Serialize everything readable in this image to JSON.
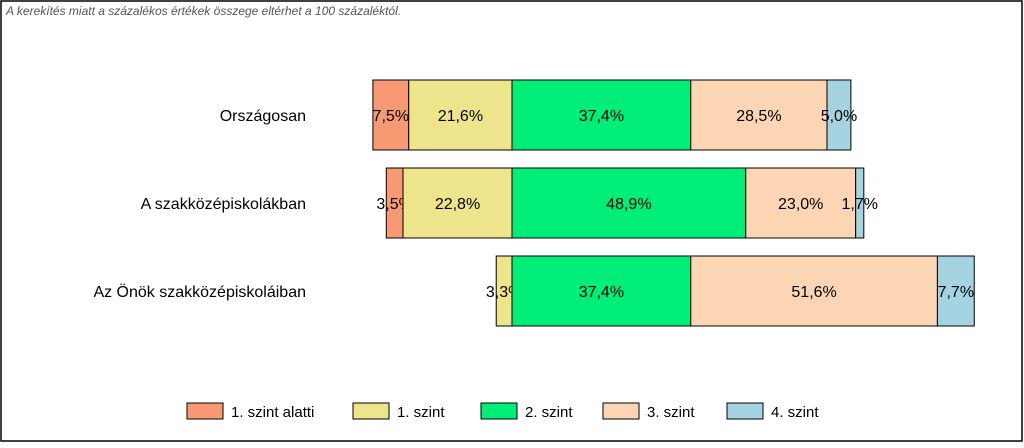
{
  "note": "A kerekítés miatt a  százalékos értékek összege eltérhet a 100 százaléktól.",
  "chart_data": {
    "type": "bar",
    "orientation": "horizontal",
    "stacked": true,
    "diverging": true,
    "categories": [
      "Országosan",
      "A szakközépiskolákban",
      "Az Önök szakközépiskoláiban"
    ],
    "series": [
      {
        "name": "1. szint alatti",
        "color": "#f79a73",
        "values": [
          7.5,
          3.5,
          0.0
        ],
        "labels": [
          "7,5%",
          "3,5%",
          ""
        ]
      },
      {
        "name": "1. szint",
        "color": "#ede48c",
        "values": [
          21.6,
          22.8,
          3.3
        ],
        "labels": [
          "21,6%",
          "22,8%",
          "3,3%"
        ]
      },
      {
        "name": "2. szint",
        "color": "#00ee77",
        "values": [
          37.4,
          48.9,
          37.4
        ],
        "labels": [
          "37,4%",
          "48,9%",
          "37,4%"
        ]
      },
      {
        "name": "3. szint",
        "color": "#fcd6b4",
        "values": [
          28.5,
          23.0,
          51.6
        ],
        "labels": [
          "28,5%",
          "23,0%",
          "51,6%"
        ]
      },
      {
        "name": "4. szint",
        "color": "#a6d3e1",
        "values": [
          5.0,
          1.7,
          7.7
        ],
        "labels": [
          "5,0%",
          "1,7%",
          "7,7%"
        ]
      }
    ],
    "baseline_between": [
      "1. szint",
      "2. szint"
    ],
    "legend_position": "bottom",
    "grid": false
  }
}
